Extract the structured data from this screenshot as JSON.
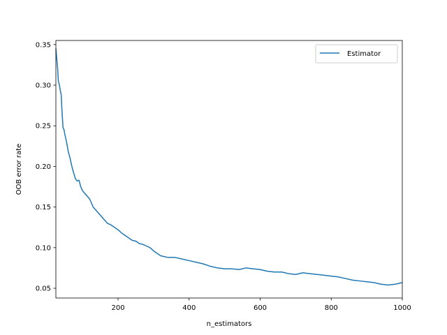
{
  "chart_data": {
    "type": "line",
    "title": "",
    "xlabel": "n_estimators",
    "ylabel": "OOB error rate",
    "xlim": [
      25,
      1000
    ],
    "ylim": [
      0.038,
      0.355
    ],
    "xticks": [
      200,
      400,
      600,
      800,
      1000
    ],
    "xtick_labels": [
      "200",
      "400",
      "600",
      "800",
      "1000"
    ],
    "yticks": [
      0.05,
      0.1,
      0.15,
      0.2,
      0.25,
      0.3,
      0.35
    ],
    "ytick_labels": [
      "0.05",
      "0.10",
      "0.15",
      "0.20",
      "0.25",
      "0.30",
      "0.35"
    ],
    "grid": false,
    "legend_position": "top-right",
    "colors": {
      "series": "#1f77b4"
    },
    "series": [
      {
        "name": "Estimator",
        "color": "#1f77b4",
        "x": [
          25,
          28,
          30,
          32,
          35,
          38,
          40,
          42,
          45,
          48,
          50,
          55,
          60,
          65,
          70,
          75,
          80,
          85,
          90,
          95,
          100,
          110,
          120,
          130,
          140,
          150,
          160,
          170,
          180,
          190,
          200,
          210,
          220,
          230,
          240,
          250,
          260,
          270,
          280,
          290,
          300,
          320,
          340,
          360,
          380,
          400,
          420,
          440,
          460,
          480,
          500,
          520,
          540,
          560,
          580,
          600,
          620,
          640,
          660,
          680,
          700,
          720,
          740,
          760,
          780,
          800,
          820,
          840,
          860,
          880,
          900,
          920,
          940,
          960,
          980,
          1000
        ],
        "y": [
          0.345,
          0.33,
          0.32,
          0.305,
          0.3,
          0.292,
          0.288,
          0.27,
          0.248,
          0.245,
          0.24,
          0.23,
          0.218,
          0.21,
          0.2,
          0.192,
          0.185,
          0.182,
          0.183,
          0.175,
          0.17,
          0.165,
          0.16,
          0.15,
          0.145,
          0.14,
          0.135,
          0.13,
          0.128,
          0.125,
          0.122,
          0.118,
          0.115,
          0.112,
          0.109,
          0.108,
          0.105,
          0.104,
          0.102,
          0.1,
          0.096,
          0.09,
          0.088,
          0.088,
          0.086,
          0.084,
          0.082,
          0.08,
          0.077,
          0.075,
          0.074,
          0.074,
          0.073,
          0.075,
          0.074,
          0.073,
          0.071,
          0.07,
          0.07,
          0.068,
          0.067,
          0.069,
          0.068,
          0.067,
          0.066,
          0.065,
          0.064,
          0.062,
          0.06,
          0.059,
          0.058,
          0.057,
          0.055,
          0.054,
          0.055,
          0.057
        ]
      }
    ]
  }
}
